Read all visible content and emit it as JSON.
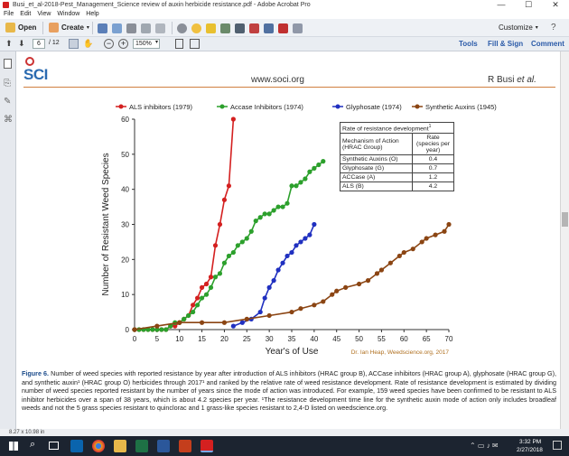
{
  "window": {
    "title": "Busi_et_al-2018-Pest_Management_Science review of auxin herbicide resistance.pdf - Adobe Acrobat Pro",
    "minimize": "—",
    "maximize": "☐",
    "close": "✕"
  },
  "menu": [
    "File",
    "Edit",
    "View",
    "Window",
    "Help"
  ],
  "toolbar": {
    "open": "Open",
    "create": "Create",
    "customize": "Customize",
    "page_current": "6",
    "page_total": "/ 12",
    "zoom": "150%",
    "tools": "Tools",
    "fill_sign": "Fill & Sign",
    "comment": "Comment"
  },
  "header": {
    "logo": "SCI",
    "url": "www.soci.org",
    "author": "R Busi",
    "author_suffix": "et al."
  },
  "chart_data": {
    "type": "line",
    "xlabel": "Year's of Use",
    "ylabel": "Number of Resistant Weed Species",
    "xlim": [
      0,
      70
    ],
    "ylim": [
      0,
      60
    ],
    "xticks": [
      "0",
      "5",
      "10",
      "15",
      "20",
      "25",
      "30",
      "35",
      "40",
      "45",
      "50",
      "55",
      "60",
      "65",
      "70"
    ],
    "yticks": [
      "0",
      "10",
      "20",
      "30",
      "40",
      "50",
      "60"
    ],
    "grid": false,
    "legend": "top",
    "credit": "Dr. Ian Heap, Weedscience.org, 2017",
    "series": [
      {
        "name": "ALS inhibitors (1979)",
        "color": "#d42020",
        "x": [
          0,
          1,
          2,
          3,
          4,
          5,
          6,
          7,
          8,
          9,
          10,
          11,
          12,
          13,
          14,
          15,
          16,
          17,
          18,
          19,
          20,
          21,
          22
        ],
        "y": [
          0,
          0,
          0,
          0,
          0,
          0,
          0,
          0,
          1,
          1,
          2,
          3,
          4,
          7,
          9,
          12,
          13,
          15,
          24,
          30,
          37,
          41,
          60
        ]
      },
      {
        "name": "Accase Inhibitors (1974)",
        "color": "#2ca02c",
        "x": [
          0,
          1,
          2,
          3,
          4,
          5,
          6,
          7,
          8,
          9,
          10,
          11,
          12,
          13,
          14,
          15,
          16,
          17,
          18,
          19,
          20,
          21,
          22,
          23,
          24,
          25,
          26,
          27,
          28,
          29,
          30,
          31,
          32,
          33,
          34,
          35,
          36,
          37,
          38,
          39,
          40,
          41,
          42
        ],
        "y": [
          0,
          0,
          0,
          0,
          0,
          0,
          0,
          0,
          1,
          2,
          2,
          3,
          4,
          5,
          7,
          9,
          10,
          12,
          15,
          16,
          19,
          21,
          22,
          24,
          25,
          26,
          28,
          31,
          32,
          33,
          33,
          34,
          35,
          35,
          36,
          41,
          41,
          42,
          43,
          45,
          46,
          47,
          48
        ]
      },
      {
        "name": "Glyphosate (1974)",
        "color": "#2030c0",
        "x": [
          22,
          24,
          26,
          28,
          29,
          30,
          31,
          32,
          33,
          34,
          35,
          36,
          37,
          38,
          39,
          40
        ],
        "y": [
          1,
          2,
          3,
          5,
          9,
          12,
          14,
          17,
          19,
          21,
          22,
          24,
          25,
          26,
          27,
          30
        ]
      },
      {
        "name": "Synthetic Auxins (1945)",
        "color": "#8b4513",
        "x": [
          0,
          5,
          10,
          15,
          20,
          25,
          30,
          35,
          37,
          40,
          42,
          44,
          45,
          47,
          50,
          52,
          54,
          55,
          57,
          59,
          60,
          62,
          64,
          65,
          67,
          69,
          70
        ],
        "y": [
          0,
          1,
          2,
          2,
          2,
          3,
          4,
          5,
          6,
          7,
          8,
          10,
          11,
          12,
          13,
          14,
          16,
          17,
          19,
          21,
          22,
          23,
          25,
          26,
          27,
          28,
          30
        ]
      }
    ]
  },
  "rate_table": {
    "title": "Rate of resistance development",
    "title_sup": "1",
    "col1": "Mechanism of Action (HRAC Group)",
    "col2": "Rate (species per year)",
    "rows": [
      {
        "name": "Synthetic Auxins (O)",
        "rate": "0.4"
      },
      {
        "name": "Glyphosate (G)",
        "rate": "0.7"
      },
      {
        "name": "ACCase (A)",
        "rate": "1.2"
      },
      {
        "name": "ALS (B)",
        "rate": "4.2"
      }
    ]
  },
  "caption": {
    "label": "Figure 6.",
    "text": " Number of weed species with reported resistance by year after introduction of ALS inhibitors (HRAC group B), ACCase inhibitors (HRAC group A), glyphosate (HRAC group G), and synthetic auxin¹ (HRAC group O) herbicides through 2017¹ and ranked by the relative rate of weed resistance development. Rate of resistance development is estimated by dividing number of weed species reported resistant by the number of years since the mode of action was introduced. For example, 159 weed species have been confirmed to be resistant to ALS inhibitor herbicides over a span of 38 years, which is about 4.2 species per year. ¹The resistance development time line for the synthetic auxin mode of action only includes broadleaf weeds and not the 5 grass species resistant to quinclorac and 1 grass-like species resistant to 2,4-D listed on weedscience.org."
  },
  "status": {
    "page_size": "8.27 x 10.98 in"
  },
  "taskbar": {
    "time": "3:32 PM",
    "date": "2/27/2018",
    "colors": {
      "start": "#ffffff",
      "chrome": "#e8a020",
      "excel": "#1e7145",
      "word": "#2b579a",
      "ppt": "#c43e1c",
      "acrobat": "#d42020",
      "outlook": "#0a64ad"
    }
  }
}
